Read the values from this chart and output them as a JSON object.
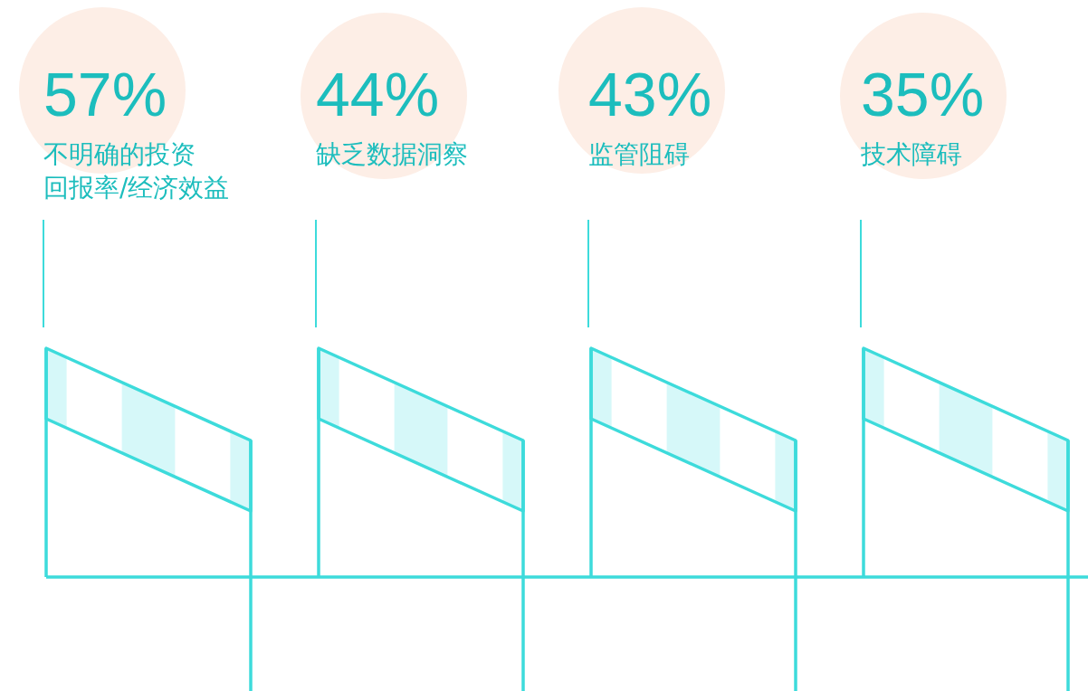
{
  "chart_data": {
    "type": "other",
    "categories": [
      "不明确的投资回报率/经济效益",
      "缺乏数据洞察",
      "监管阻碍",
      "技术障碍"
    ],
    "values": [
      57,
      44,
      43,
      35
    ],
    "value_labels": [
      "57%",
      "44%",
      "43%",
      "35%"
    ],
    "color": "#fdeee6"
  }
}
